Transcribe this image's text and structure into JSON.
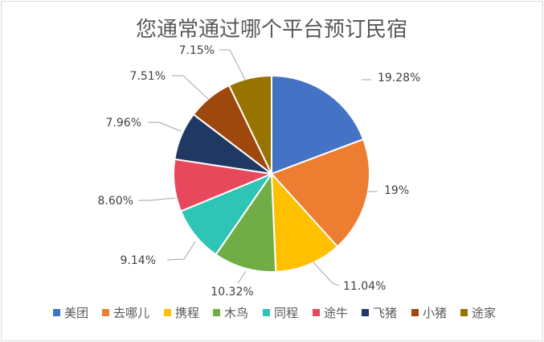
{
  "chart_data": {
    "type": "pie",
    "title": "您通常通过哪个平台预订民宿",
    "slices": [
      {
        "name": "美团",
        "value": 19.28,
        "label": "19.28%",
        "color": "#4472C4"
      },
      {
        "name": "去哪儿",
        "value": 19.0,
        "label": "19%",
        "color": "#ED7D31"
      },
      {
        "name": "携程",
        "value": 11.04,
        "label": "11.04%",
        "color": "#FFC000"
      },
      {
        "name": "木鸟",
        "value": 10.32,
        "label": "10.32%",
        "color": "#70AD47"
      },
      {
        "name": "同程",
        "value": 9.14,
        "label": "9.14%",
        "color": "#2EC4B6"
      },
      {
        "name": "途牛",
        "value": 8.6,
        "label": "8.60%",
        "color": "#E8485C"
      },
      {
        "name": "飞猪",
        "value": 7.96,
        "label": "7.96%",
        "color": "#203864"
      },
      {
        "name": "小猪",
        "value": 7.51,
        "label": "7.51%",
        "color": "#9E480E"
      },
      {
        "name": "途家",
        "value": 7.15,
        "label": "7.15%",
        "color": "#997300"
      }
    ],
    "legend_position": "bottom"
  }
}
